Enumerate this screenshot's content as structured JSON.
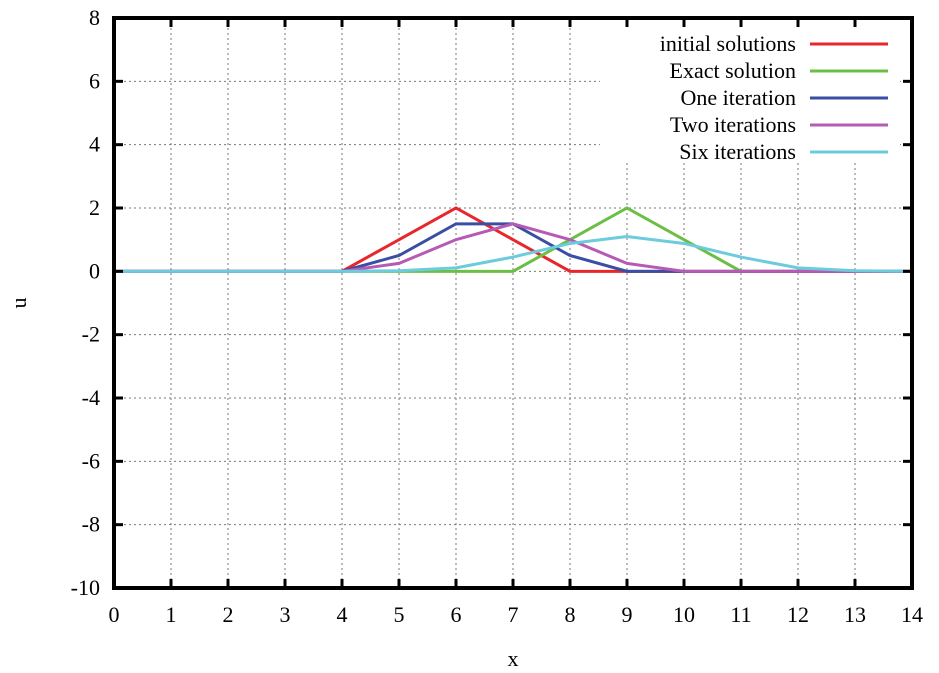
{
  "chart_data": {
    "type": "line",
    "xlabel": "x",
    "ylabel": "u",
    "xlim": [
      0,
      14
    ],
    "ylim": [
      -10,
      8
    ],
    "xticks": [
      0,
      1,
      2,
      3,
      4,
      5,
      6,
      7,
      8,
      9,
      10,
      11,
      12,
      13,
      14
    ],
    "yticks": [
      -10,
      -8,
      -6,
      -4,
      -2,
      0,
      2,
      4,
      6,
      8
    ],
    "grid": true,
    "legend_position": "top-right",
    "series": [
      {
        "name": "initial solutions",
        "color": "#e8262c",
        "x": [
          0,
          1,
          2,
          3,
          4,
          5,
          6,
          7,
          8,
          9,
          10,
          11,
          12,
          13,
          14
        ],
        "y": [
          0,
          0,
          0,
          0,
          0,
          1,
          2,
          1,
          0,
          0,
          0,
          0,
          0,
          0,
          0
        ]
      },
      {
        "name": "Exact solution",
        "color": "#6cbf44",
        "x": [
          0,
          1,
          2,
          3,
          4,
          5,
          6,
          7,
          8,
          9,
          10,
          11,
          12,
          13,
          14
        ],
        "y": [
          0,
          0,
          0,
          0,
          0,
          0,
          0,
          0,
          1,
          2,
          1,
          0,
          0,
          0,
          0
        ]
      },
      {
        "name": "One iteration",
        "color": "#3a4ea4",
        "x": [
          0,
          1,
          2,
          3,
          4,
          5,
          6,
          7,
          8,
          9,
          10,
          11,
          12,
          13,
          14
        ],
        "y": [
          0,
          0,
          0,
          0,
          0,
          0.5,
          1.5,
          1.5,
          0.5,
          0,
          0,
          0,
          0,
          0,
          0
        ]
      },
      {
        "name": "Two iterations",
        "color": "#b65ab4",
        "x": [
          0,
          1,
          2,
          3,
          4,
          5,
          6,
          7,
          8,
          9,
          10,
          11,
          12,
          13,
          14
        ],
        "y": [
          0,
          0,
          0,
          0,
          0,
          0.25,
          1,
          1.5,
          1,
          0.25,
          0,
          0,
          0,
          0,
          0
        ]
      },
      {
        "name": "Six iterations",
        "color": "#6ccbdc",
        "x": [
          0,
          1,
          2,
          3,
          4,
          5,
          6,
          7,
          8,
          9,
          10,
          11,
          12,
          13,
          14
        ],
        "y": [
          0,
          0,
          0,
          0,
          0,
          0.02,
          0.11,
          0.45,
          0.88,
          1.1,
          0.88,
          0.45,
          0.11,
          0.02,
          0
        ]
      }
    ]
  }
}
